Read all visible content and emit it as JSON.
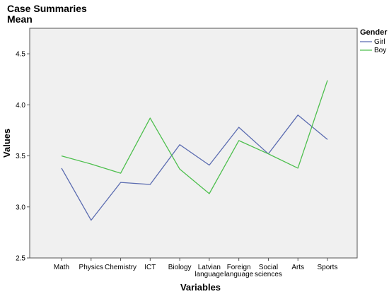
{
  "chart_data": {
    "type": "line",
    "title": "Case Summaries",
    "subtitle": "Mean",
    "xlabel": "Variables",
    "ylabel": "Values",
    "ylim": [
      2.5,
      4.75
    ],
    "yticks": [
      "2.5",
      "3.0",
      "3.5",
      "4.0",
      "4.5"
    ],
    "categories": [
      [
        "Math"
      ],
      [
        "Physics"
      ],
      [
        "Chemistry"
      ],
      [
        "ICT"
      ],
      [
        "Biology"
      ],
      [
        "Latvian",
        "language"
      ],
      [
        "Foreign",
        "language"
      ],
      [
        "Social",
        "sciences"
      ],
      [
        "Arts"
      ],
      [
        "Sports"
      ]
    ],
    "legend": {
      "title": "Gender",
      "position": "top-right"
    },
    "series": [
      {
        "name": "Girl",
        "color": "#5a6bb0",
        "values": [
          3.38,
          2.87,
          3.24,
          3.22,
          3.61,
          3.41,
          3.78,
          3.52,
          3.9,
          3.66
        ]
      },
      {
        "name": "Boy",
        "color": "#4dbf4d",
        "values": [
          3.5,
          3.42,
          3.33,
          3.87,
          3.37,
          3.13,
          3.65,
          3.52,
          3.38,
          4.24
        ]
      }
    ],
    "grid": false,
    "plot_background": "#f0f0f0"
  }
}
